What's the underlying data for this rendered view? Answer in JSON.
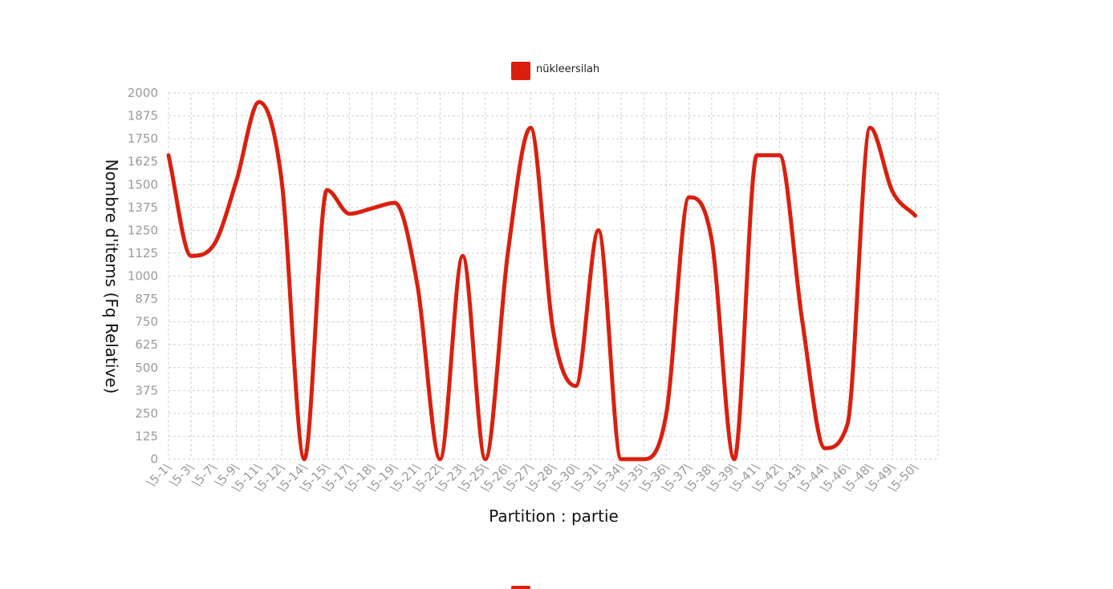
{
  "chart_data": {
    "type": "line",
    "x": [
      "\\5-1\\",
      "\\5-3\\",
      "\\5-7\\",
      "\\5-9\\",
      "\\5-11\\",
      "\\5-12\\",
      "\\5-14\\",
      "\\5-15\\",
      "\\5-17\\",
      "\\5-18\\",
      "\\5-19\\",
      "\\5-21\\",
      "\\5-22\\",
      "\\5-23\\",
      "\\5-25\\",
      "\\5-26\\",
      "\\5-27\\",
      "\\5-28\\",
      "\\5-30\\",
      "\\5-31\\",
      "\\5-34\\",
      "\\5-35\\",
      "\\5-36\\",
      "\\5-37\\",
      "\\5-38\\",
      "\\5-39\\",
      "\\5-41\\",
      "\\5-42\\",
      "\\5-43\\",
      "\\5-44\\",
      "\\5-46\\",
      "\\5-48\\",
      "\\5-49\\",
      "\\5-50\\"
    ],
    "series": [
      {
        "name": "nükleersilah",
        "color": "#d9200f",
        "values": [
          1660,
          1110,
          1170,
          1520,
          1950,
          1520,
          0,
          1470,
          1340,
          1370,
          1400,
          950,
          0,
          1110,
          0,
          1130,
          1810,
          700,
          400,
          1250,
          0,
          0,
          250,
          1430,
          1200,
          0,
          1660,
          1660,
          760,
          60,
          190,
          1810,
          1460,
          1330
        ]
      }
    ],
    "xlabel": "Partition : partie",
    "ylabel": "Nombre d'items (Fq Relative)",
    "ylim": [
      0,
      2000
    ],
    "yticks": [
      "0",
      "125",
      "250",
      "375",
      "500",
      "625",
      "750",
      "875",
      "1000",
      "1125",
      "1250",
      "1375",
      "1500",
      "1625",
      "1750",
      "1875",
      "2000"
    ],
    "grid": true,
    "legend_position": "top-center"
  }
}
